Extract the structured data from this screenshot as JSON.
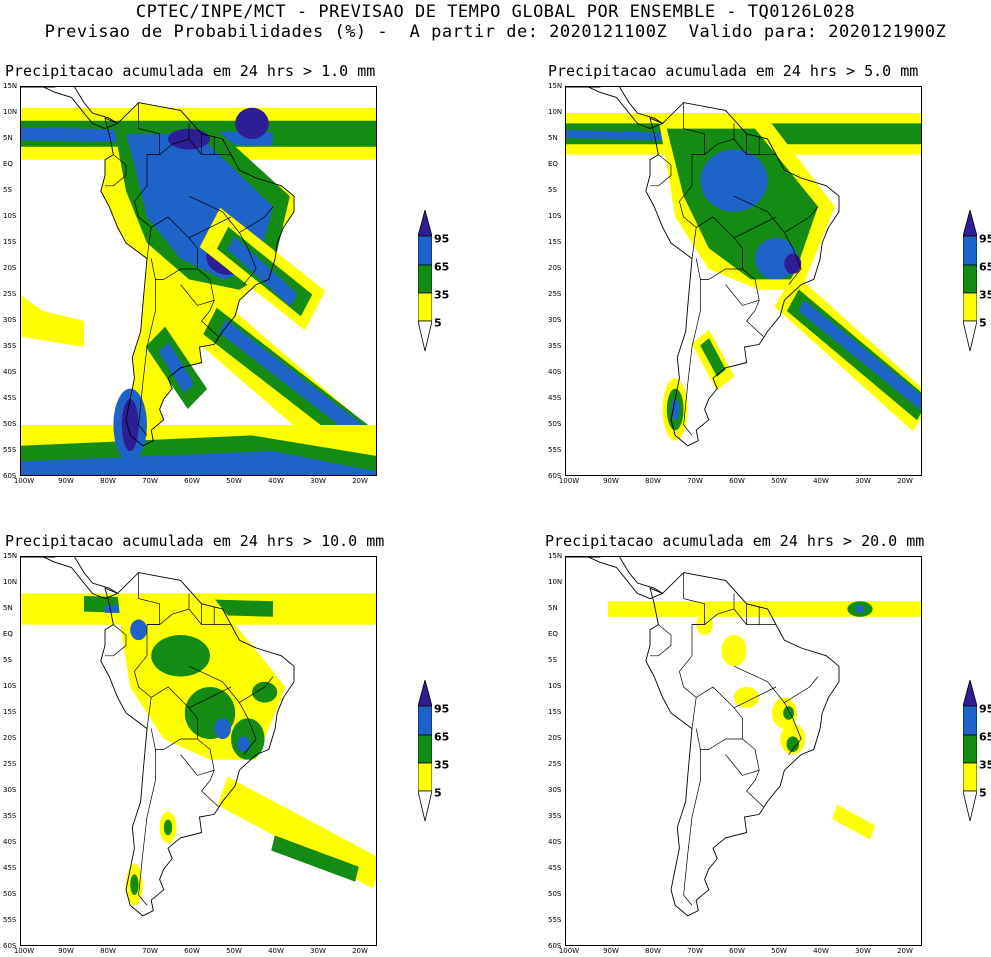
{
  "header": {
    "line1": "CPTEC/INPE/MCT - PREVISAO DE TEMPO GLOBAL POR ENSEMBLE - TQ0126L028",
    "line2": "Previsao de Probabilidades (%) -  A partir de: 2020121100Z  Valido para: 2020121900Z"
  },
  "panels": [
    {
      "id": "p1",
      "title": "Precipitacao acumulada em 24 hrs > 1.0 mm",
      "level": "1.0"
    },
    {
      "id": "p2",
      "title": "Precipitacao acumulada em 24 hrs > 5.0 mm",
      "level": "5.0"
    },
    {
      "id": "p3",
      "title": "Precipitacao acumulada em 24 hrs > 10.0 mm",
      "level": "10.0"
    },
    {
      "id": "p4",
      "title": "Precipitacao acumulada em 24 hrs > 20.0 mm",
      "level": "20.0"
    }
  ],
  "lat_labels": [
    "15N",
    "10N",
    "5N",
    "EQ",
    "5S",
    "10S",
    "15S",
    "20S",
    "25S",
    "30S",
    "35S",
    "40S",
    "45S",
    "50S",
    "55S",
    "60S"
  ],
  "lon_labels": [
    "100W",
    "90W",
    "80W",
    "70W",
    "60W",
    "50W",
    "40W",
    "30W",
    "20W"
  ],
  "legend": {
    "labels": [
      "95",
      "65",
      "35",
      "5"
    ],
    "colors": {
      "c95": "#2e1e96",
      "c65": "#1e64c8",
      "c35": "#148c14",
      "c5": "#ffff00"
    }
  }
}
